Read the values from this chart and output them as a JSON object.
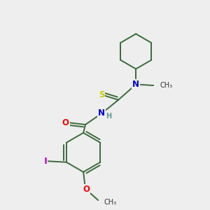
{
  "background_color": "#eeeeee",
  "bond_color": "#3a6b3a",
  "atom_colors": {
    "S": "#cccc00",
    "N": "#0000cc",
    "O": "#ff0000",
    "I": "#cc00cc",
    "H": "#5b9999",
    "C": "#333333"
  },
  "bond_width": 1.4,
  "font_size_atom": 8.5,
  "fig_width": 3.0,
  "fig_height": 3.0,
  "dpi": 100,
  "xlim": [
    0,
    10
  ],
  "ylim": [
    0,
    10
  ]
}
